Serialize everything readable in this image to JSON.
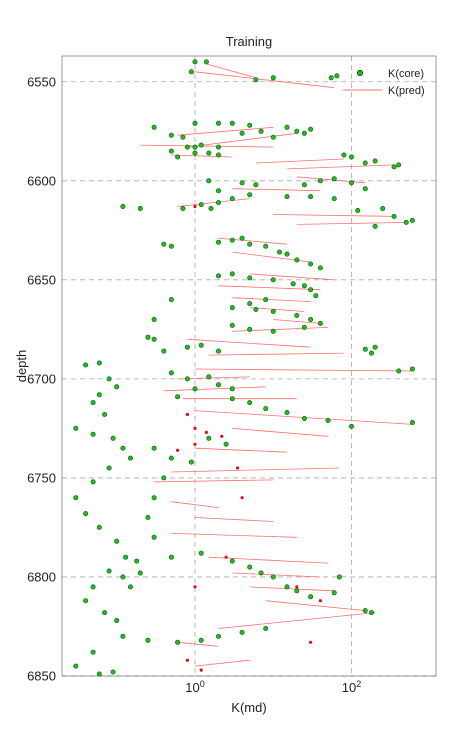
{
  "chart_data": {
    "type": "scatter",
    "title": "Training",
    "xlabel": "K(md)",
    "ylabel": "depth",
    "x_scale": "log",
    "xlim": [
      0.02,
      1200
    ],
    "ylim": [
      6850,
      6537
    ],
    "y_ticks": [
      6550,
      6600,
      6650,
      6700,
      6750,
      6800,
      6850
    ],
    "x_ticks": [
      1,
      100
    ],
    "x_tick_labels": [
      {
        "base": "10",
        "exp": "0"
      },
      {
        "base": "10",
        "exp": "2"
      }
    ],
    "grid": true,
    "legend_position": "top-right",
    "colors": {
      "core": "#22bb22",
      "core_edge": "#0a5a0a",
      "pred": "#ff7070",
      "red_points": "#dd1111",
      "grid": "#aaaaaa"
    },
    "series": [
      {
        "name": "K(core)",
        "type": "scatter",
        "points": [
          [
            1.0,
            6540
          ],
          [
            1.4,
            6540
          ],
          [
            0.9,
            6545
          ],
          [
            6,
            6549
          ],
          [
            10,
            6548
          ],
          [
            55,
            6548
          ],
          [
            65,
            6547
          ],
          [
            5,
            6572
          ],
          [
            3,
            6571
          ],
          [
            2,
            6571
          ],
          [
            1,
            6571
          ],
          [
            0.3,
            6573
          ],
          [
            0.5,
            6577
          ],
          [
            0.7,
            6578
          ],
          [
            0.8,
            6583
          ],
          [
            1,
            6583
          ],
          [
            1.2,
            6582
          ],
          [
            2,
            6583
          ],
          [
            4,
            6576
          ],
          [
            7,
            6575
          ],
          [
            10,
            6578
          ],
          [
            15,
            6573
          ],
          [
            20,
            6575
          ],
          [
            25,
            6576
          ],
          [
            30,
            6574
          ],
          [
            2,
            6587
          ],
          [
            1,
            6586
          ],
          [
            0.5,
            6585
          ],
          [
            1.5,
            6586
          ],
          [
            0.6,
            6588
          ],
          [
            80,
            6587
          ],
          [
            100,
            6588
          ],
          [
            150,
            6591
          ],
          [
            200,
            6590
          ],
          [
            350,
            6593
          ],
          [
            400,
            6592
          ],
          [
            4,
            6601
          ],
          [
            6,
            6602
          ],
          [
            1.5,
            6600
          ],
          [
            2,
            6605
          ],
          [
            25,
            6602
          ],
          [
            40,
            6600
          ],
          [
            60,
            6599
          ],
          [
            100,
            6601
          ],
          [
            150,
            6604
          ],
          [
            0.12,
            6613
          ],
          [
            0.2,
            6614
          ],
          [
            0.7,
            6614
          ],
          [
            1.2,
            6612
          ],
          [
            1.6,
            6614
          ],
          [
            2,
            6611
          ],
          [
            3,
            6609
          ],
          [
            5,
            6607
          ],
          [
            15,
            6608
          ],
          [
            30,
            6608
          ],
          [
            60,
            6609
          ],
          [
            120,
            6615
          ],
          [
            250,
            6614
          ],
          [
            350,
            6618
          ],
          [
            500,
            6621
          ],
          [
            600,
            6620
          ],
          [
            200,
            6623
          ],
          [
            0.4,
            6632
          ],
          [
            0.5,
            6633
          ],
          [
            2,
            6631
          ],
          [
            3,
            6630
          ],
          [
            4,
            6629
          ],
          [
            5,
            6632
          ],
          [
            8,
            6633
          ],
          [
            12,
            6636
          ],
          [
            15,
            6637
          ],
          [
            20,
            6640
          ],
          [
            30,
            6642
          ],
          [
            40,
            6644
          ],
          [
            3,
            6647
          ],
          [
            2,
            6648
          ],
          [
            5,
            6649
          ],
          [
            10,
            6650
          ],
          [
            18,
            6652
          ],
          [
            25,
            6653
          ],
          [
            30,
            6655
          ],
          [
            35,
            6658
          ],
          [
            8,
            6660
          ],
          [
            5,
            6662
          ],
          [
            3,
            6664
          ],
          [
            6,
            6665
          ],
          [
            10,
            6666
          ],
          [
            20,
            6668
          ],
          [
            30,
            6670
          ],
          [
            40,
            6672
          ],
          [
            25,
            6674
          ],
          [
            10,
            6676
          ],
          [
            5,
            6675
          ],
          [
            3,
            6673
          ],
          [
            0.5,
            6660
          ],
          [
            0.3,
            6670
          ],
          [
            0.25,
            6679
          ],
          [
            0.3,
            6680
          ],
          [
            0.4,
            6686
          ],
          [
            0.8,
            6684
          ],
          [
            1.2,
            6683
          ],
          [
            2,
            6686
          ],
          [
            150,
            6685
          ],
          [
            180,
            6687
          ],
          [
            200,
            6684
          ],
          [
            600,
            6695
          ],
          [
            400,
            6696
          ],
          [
            0.5,
            6697
          ],
          [
            0.8,
            6700
          ],
          [
            1.5,
            6699
          ],
          [
            2,
            6703
          ],
          [
            3,
            6705
          ],
          [
            1,
            6705
          ],
          [
            0.6,
            6709
          ],
          [
            3,
            6710
          ],
          [
            5,
            6712
          ],
          [
            8,
            6715
          ],
          [
            15,
            6717
          ],
          [
            25,
            6720
          ],
          [
            50,
            6721
          ],
          [
            100,
            6724
          ],
          [
            600,
            6722
          ],
          [
            1.5,
            6730
          ],
          [
            2.5,
            6733
          ],
          [
            0.3,
            6735
          ],
          [
            0.5,
            6740
          ],
          [
            0.9,
            6742
          ],
          [
            0.4,
            6750
          ],
          [
            0.3,
            6760
          ],
          [
            0.25,
            6770
          ],
          [
            0.3,
            6780
          ],
          [
            0.5,
            6790
          ],
          [
            1.2,
            6788
          ],
          [
            3,
            6792
          ],
          [
            5,
            6795
          ],
          [
            7,
            6798
          ],
          [
            10,
            6800
          ],
          [
            15,
            6805
          ],
          [
            20,
            6807
          ],
          [
            30,
            6810
          ],
          [
            60,
            6808
          ],
          [
            70,
            6800
          ],
          [
            0.06,
            6692
          ],
          [
            0.04,
            6693
          ],
          [
            0.08,
            6700
          ],
          [
            0.1,
            6704
          ],
          [
            0.06,
            6708
          ],
          [
            0.05,
            6712
          ],
          [
            0.07,
            6718
          ],
          [
            0.03,
            6725
          ],
          [
            0.05,
            6728
          ],
          [
            0.09,
            6730
          ],
          [
            0.12,
            6735
          ],
          [
            0.15,
            6740
          ],
          [
            0.08,
            6745
          ],
          [
            0.05,
            6752
          ],
          [
            0.03,
            6760
          ],
          [
            0.04,
            6768
          ],
          [
            0.06,
            6775
          ],
          [
            0.1,
            6782
          ],
          [
            0.13,
            6790
          ],
          [
            0.08,
            6797
          ],
          [
            0.05,
            6805
          ],
          [
            0.04,
            6812
          ],
          [
            0.07,
            6818
          ],
          [
            0.1,
            6822
          ],
          [
            0.12,
            6830
          ],
          [
            0.05,
            6838
          ],
          [
            0.03,
            6845
          ],
          [
            0.06,
            6849
          ],
          [
            0.09,
            6848
          ],
          [
            0.15,
            6805
          ],
          [
            0.12,
            6800
          ],
          [
            0.18,
            6792
          ],
          [
            0.2,
            6798
          ],
          [
            150,
            6817
          ],
          [
            180,
            6818
          ],
          [
            0.25,
            6832
          ],
          [
            0.6,
            6833
          ],
          [
            1.2,
            6832
          ],
          [
            2,
            6830
          ],
          [
            4,
            6828
          ],
          [
            8,
            6826
          ]
        ]
      },
      {
        "name": "K(pred)",
        "type": "line",
        "segments": [
          [
            [
              1.0,
              6545
            ],
            [
              60,
              6553
            ]
          ],
          [
            [
              1.4,
              6541
            ],
            [
              6,
              6548
            ]
          ],
          [
            [
              0.6,
              6577
            ],
            [
              10,
              6573
            ]
          ],
          [
            [
              0.8,
              6583
            ],
            [
              20,
              6576
            ]
          ],
          [
            [
              0.2,
              6582
            ],
            [
              10,
              6583
            ]
          ],
          [
            [
              0.5,
              6587
            ],
            [
              3,
              6588
            ]
          ],
          [
            [
              6,
              6591
            ],
            [
              80,
              6589
            ]
          ],
          [
            [
              15,
              6594
            ],
            [
              350,
              6592
            ]
          ],
          [
            [
              20,
              6598
            ],
            [
              150,
              6601
            ]
          ],
          [
            [
              3,
              6604
            ],
            [
              40,
              6605
            ]
          ],
          [
            [
              0.6,
              6613
            ],
            [
              5,
              6609
            ]
          ],
          [
            [
              10,
              6617
            ],
            [
              350,
              6618
            ]
          ],
          [
            [
              20,
              6622
            ],
            [
              500,
              6621
            ]
          ],
          [
            [
              2,
              6629
            ],
            [
              15,
              6632
            ]
          ],
          [
            [
              3,
              6636
            ],
            [
              30,
              6641
            ]
          ],
          [
            [
              5,
              6647
            ],
            [
              60,
              6650
            ]
          ],
          [
            [
              2,
              6653
            ],
            [
              40,
              6655
            ]
          ],
          [
            [
              3,
              6659
            ],
            [
              30,
              6661
            ]
          ],
          [
            [
              5,
              6664
            ],
            [
              25,
              6666
            ]
          ],
          [
            [
              10,
              6670
            ],
            [
              40,
              6672
            ]
          ],
          [
            [
              3,
              6676
            ],
            [
              50,
              6674
            ]
          ],
          [
            [
              0.8,
              6680
            ],
            [
              30,
              6684
            ]
          ],
          [
            [
              1.5,
              6688
            ],
            [
              80,
              6687
            ]
          ],
          [
            [
              1,
              6695
            ],
            [
              600,
              6696
            ]
          ],
          [
            [
              0.6,
              6700
            ],
            [
              5,
              6699
            ]
          ],
          [
            [
              0.4,
              6706
            ],
            [
              8,
              6704
            ]
          ],
          [
            [
              0.7,
              6710
            ],
            [
              20,
              6710
            ]
          ],
          [
            [
              1,
              6716
            ],
            [
              600,
              6723
            ]
          ],
          [
            [
              3,
              6725
            ],
            [
              50,
              6729
            ]
          ],
          [
            [
              1,
              6735
            ],
            [
              15,
              6737
            ]
          ],
          [
            [
              0.5,
              6747
            ],
            [
              70,
              6745
            ]
          ],
          [
            [
              0.3,
              6752
            ],
            [
              10,
              6751
            ]
          ],
          [
            [
              0.5,
              6762
            ],
            [
              2,
              6765
            ]
          ],
          [
            [
              1,
              6770
            ],
            [
              10,
              6772
            ]
          ],
          [
            [
              0.5,
              6778
            ],
            [
              20,
              6780
            ]
          ],
          [
            [
              1.5,
              6790
            ],
            [
              50,
              6793
            ]
          ],
          [
            [
              3,
              6798
            ],
            [
              40,
              6800
            ]
          ],
          [
            [
              5,
              6805
            ],
            [
              60,
              6807
            ]
          ],
          [
            [
              8,
              6812
            ],
            [
              150,
              6817
            ]
          ],
          [
            [
              2,
              6826
            ],
            [
              200,
              6818
            ]
          ],
          [
            [
              0.6,
              6833
            ],
            [
              2,
              6835
            ]
          ],
          [
            [
              1,
              6845
            ],
            [
              5,
              6842
            ]
          ]
        ]
      }
    ],
    "red_points": [
      [
        1.0,
        6613
      ],
      [
        0.8,
        6718
      ],
      [
        1.0,
        6725
      ],
      [
        1.4,
        6727
      ],
      [
        2.2,
        6729
      ],
      [
        1.0,
        6733
      ],
      [
        0.6,
        6736
      ],
      [
        3.5,
        6745
      ],
      [
        1.0,
        6805
      ],
      [
        1.2,
        6847
      ],
      [
        0.8,
        6842
      ],
      [
        4,
        6760
      ],
      [
        2.5,
        6790
      ],
      [
        30,
        6833
      ],
      [
        20,
        6805
      ],
      [
        40,
        6812
      ]
    ],
    "legend": [
      {
        "label": "K(core)",
        "marker": "point"
      },
      {
        "label": "K(pred)",
        "marker": "line"
      }
    ]
  }
}
